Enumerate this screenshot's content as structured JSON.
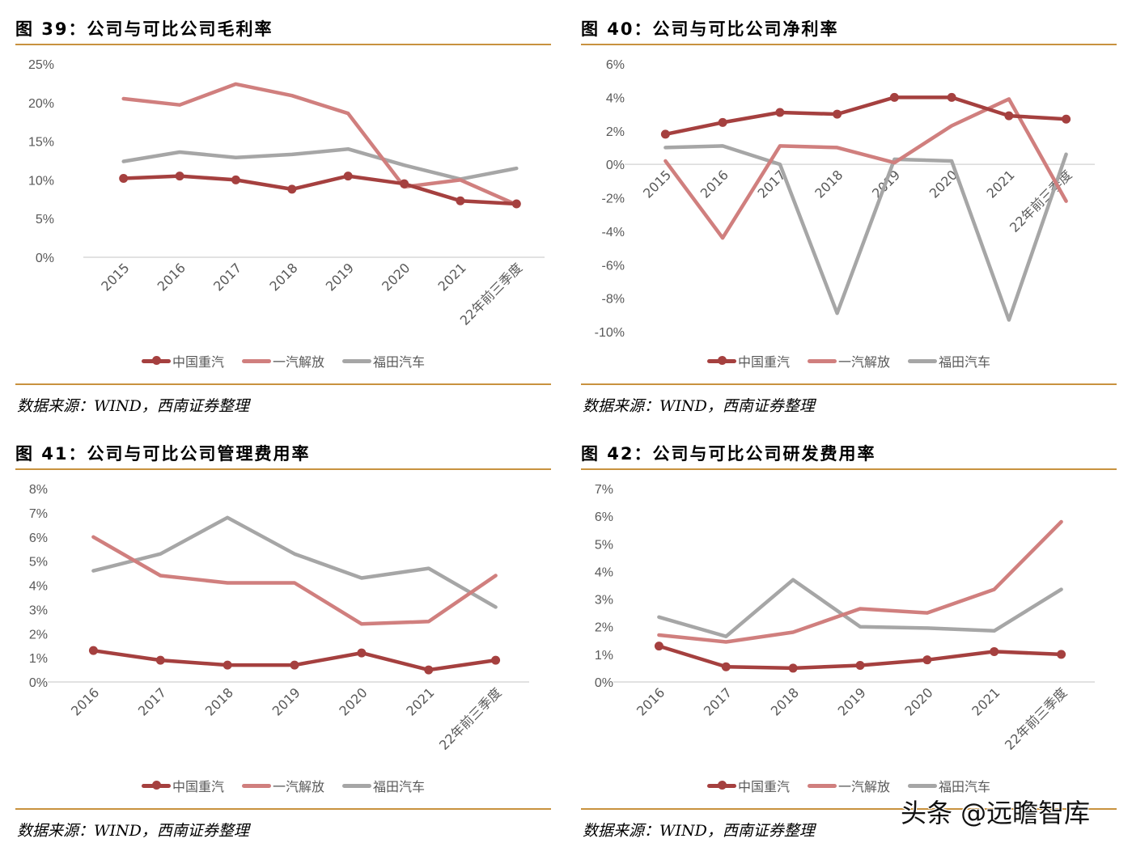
{
  "colors": {
    "sinotruk": "#A5403F",
    "faw": "#D07F7E",
    "foton": "#A6A6A6",
    "rule": "#C8923F",
    "grid": "#D9D9D9",
    "tick_text": "#595959"
  },
  "legend": [
    "中国重汽",
    "一汽解放",
    "福田汽车"
  ],
  "source_text": "数据来源：WIND，西南证券整理",
  "watermark": "头条 @远瞻智库",
  "chart_data": [
    {
      "type": "line",
      "title": "图 39：公司与可比公司毛利率",
      "xlabel": "",
      "ylabel": "",
      "categories": [
        "2015",
        "2016",
        "2017",
        "2018",
        "2019",
        "2020",
        "2021",
        "22年前三季度"
      ],
      "yticks": [
        "0%",
        "5%",
        "10%",
        "15%",
        "20%",
        "25%"
      ],
      "ylim": [
        0,
        25
      ],
      "ytick_step": 5,
      "unit": "%",
      "legend_position": "bottom",
      "series": [
        {
          "name": "中国重汽",
          "markers": true,
          "values": [
            10.2,
            10.5,
            10.0,
            8.8,
            10.5,
            9.5,
            7.3,
            6.9
          ]
        },
        {
          "name": "一汽解放",
          "markers": false,
          "values": [
            20.5,
            19.7,
            22.4,
            20.9,
            18.6,
            9.1,
            10.0,
            6.8
          ]
        },
        {
          "name": "福田汽车",
          "markers": false,
          "values": [
            12.4,
            13.6,
            12.9,
            13.3,
            14.0,
            11.9,
            10.1,
            11.5
          ]
        }
      ]
    },
    {
      "type": "line",
      "title": "图 40：公司与可比公司净利率",
      "xlabel": "",
      "ylabel": "",
      "categories": [
        "2015",
        "2016",
        "2017",
        "2018",
        "2019",
        "2020",
        "2021",
        "22年前三季度"
      ],
      "yticks": [
        "-10%",
        "-8%",
        "-6%",
        "-4%",
        "-2%",
        "0%",
        "2%",
        "4%",
        "6%"
      ],
      "ylim": [
        -10,
        6
      ],
      "ytick_step": 2,
      "unit": "%",
      "legend_position": "bottom",
      "series": [
        {
          "name": "中国重汽",
          "markers": true,
          "values": [
            1.8,
            2.5,
            3.1,
            3.0,
            4.0,
            4.0,
            2.9,
            2.7
          ]
        },
        {
          "name": "一汽解放",
          "markers": false,
          "values": [
            0.2,
            -4.4,
            1.1,
            1.0,
            0.1,
            2.3,
            3.9,
            -2.2
          ]
        },
        {
          "name": "福田汽车",
          "markers": false,
          "values": [
            1.0,
            1.1,
            0.0,
            -8.9,
            0.3,
            0.2,
            -9.3,
            0.6
          ]
        }
      ]
    },
    {
      "type": "line",
      "title": "图 41：公司与可比公司管理费用率",
      "xlabel": "",
      "ylabel": "",
      "categories": [
        "2016",
        "2017",
        "2018",
        "2019",
        "2020",
        "2021",
        "22年前三季度"
      ],
      "yticks": [
        "0%",
        "1%",
        "2%",
        "3%",
        "4%",
        "5%",
        "6%",
        "7%",
        "8%"
      ],
      "ylim": [
        0,
        8
      ],
      "ytick_step": 1,
      "unit": "%",
      "legend_position": "bottom",
      "series": [
        {
          "name": "中国重汽",
          "markers": true,
          "values": [
            1.3,
            0.9,
            0.7,
            0.7,
            1.2,
            0.5,
            0.9
          ]
        },
        {
          "name": "一汽解放",
          "markers": false,
          "values": [
            6.0,
            4.4,
            4.1,
            4.1,
            2.4,
            2.5,
            4.4
          ]
        },
        {
          "name": "福田汽车",
          "markers": false,
          "values": [
            4.6,
            5.3,
            6.8,
            5.3,
            4.3,
            4.7,
            3.1
          ]
        }
      ]
    },
    {
      "type": "line",
      "title": "图 42：公司与可比公司研发费用率",
      "xlabel": "",
      "ylabel": "",
      "categories": [
        "2016",
        "2017",
        "2018",
        "2019",
        "2020",
        "2021",
        "22年前三季度"
      ],
      "yticks": [
        "0%",
        "1%",
        "2%",
        "3%",
        "4%",
        "5%",
        "6%",
        "7%"
      ],
      "ylim": [
        0,
        7
      ],
      "ytick_step": 1,
      "unit": "%",
      "legend_position": "bottom",
      "series": [
        {
          "name": "中国重汽",
          "markers": true,
          "values": [
            1.3,
            0.55,
            0.5,
            0.6,
            0.8,
            1.1,
            1.0
          ]
        },
        {
          "name": "一汽解放",
          "markers": false,
          "values": [
            1.7,
            1.45,
            1.8,
            2.65,
            2.5,
            3.35,
            5.8
          ]
        },
        {
          "name": "福田汽车",
          "markers": false,
          "values": [
            2.35,
            1.65,
            3.7,
            2.0,
            1.95,
            1.85,
            3.35
          ]
        }
      ]
    }
  ]
}
